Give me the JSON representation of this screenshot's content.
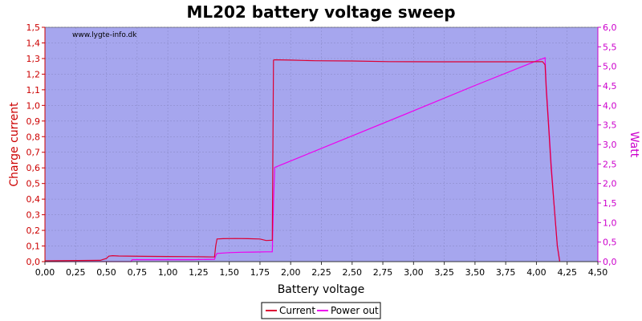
{
  "chart_data": {
    "type": "line",
    "title": "ML202 battery voltage sweep",
    "xlabel": "Battery voltage",
    "ylabel": "Charge current",
    "y2label": "Watt",
    "watermark": "www.lygte-info.dk",
    "xlim": [
      0,
      4.5
    ],
    "ylim": [
      0,
      1.5
    ],
    "y2lim": [
      0,
      6
    ],
    "x_ticks": [
      "0,00",
      "0,25",
      "0,50",
      "0,75",
      "1,00",
      "1,25",
      "1,50",
      "1,75",
      "2,00",
      "2,25",
      "2,50",
      "2,75",
      "3,00",
      "3,25",
      "3,50",
      "3,75",
      "4,00",
      "4,25",
      "4,50"
    ],
    "y_ticks": [
      "0,0",
      "0,1",
      "0,2",
      "0,3",
      "0,4",
      "0,5",
      "0,6",
      "0,7",
      "0,8",
      "0,9",
      "1,0",
      "1,1",
      "1,2",
      "1,3",
      "1,4",
      "1,5"
    ],
    "y2_ticks": [
      "0,0",
      "0,5",
      "1,0",
      "1,5",
      "2,0",
      "2,5",
      "3,0",
      "3,5",
      "4,0",
      "4,5",
      "5,0",
      "5,5",
      "6,0"
    ],
    "grid": true,
    "legend_position": "bottom",
    "colors": {
      "plot_bg": "#a6a6ee",
      "current": "#dd0033",
      "power": "#ee00ee",
      "left_axis": "#cc0000",
      "right_axis": "#cc00cc"
    },
    "series": [
      {
        "name": "Current",
        "axis": "left",
        "x": [
          0,
          0.45,
          0.5,
          0.52,
          0.55,
          0.6,
          0.8,
          1.0,
          1.2,
          1.38,
          1.39,
          1.4,
          1.45,
          1.55,
          1.65,
          1.75,
          1.8,
          1.85,
          1.86,
          1.87,
          2.0,
          2.2,
          2.5,
          2.8,
          3.2,
          3.6,
          3.9,
          4.05,
          4.07,
          4.08,
          4.1,
          4.12,
          4.15,
          4.17,
          4.19
        ],
        "y": [
          0.005,
          0.008,
          0.02,
          0.035,
          0.038,
          0.036,
          0.034,
          0.033,
          0.032,
          0.03,
          0.1,
          0.145,
          0.147,
          0.148,
          0.147,
          0.145,
          0.135,
          0.137,
          1.29,
          1.292,
          1.29,
          1.286,
          1.284,
          1.28,
          1.279,
          1.279,
          1.279,
          1.28,
          1.26,
          1.1,
          0.85,
          0.6,
          0.3,
          0.1,
          0.0
        ]
      },
      {
        "name": "Power out",
        "axis": "right",
        "x": [
          0,
          0.5,
          0.7,
          0.71,
          1.0,
          1.2,
          1.38,
          1.39,
          1.4,
          1.5,
          1.6,
          1.7,
          1.8,
          1.85,
          1.86,
          1.87,
          2.5,
          3.0,
          3.5,
          4.0,
          4.07,
          4.08,
          4.1,
          4.12,
          4.15,
          4.17,
          4.19
        ],
        "y": [
          0.0,
          0.0,
          0.0,
          0.05,
          0.05,
          0.05,
          0.06,
          0.15,
          0.21,
          0.23,
          0.24,
          0.245,
          0.25,
          0.25,
          1.5,
          2.41,
          3.22,
          3.86,
          4.51,
          5.14,
          5.22,
          4.5,
          3.5,
          2.5,
          1.2,
          0.4,
          0.0
        ]
      }
    ]
  }
}
